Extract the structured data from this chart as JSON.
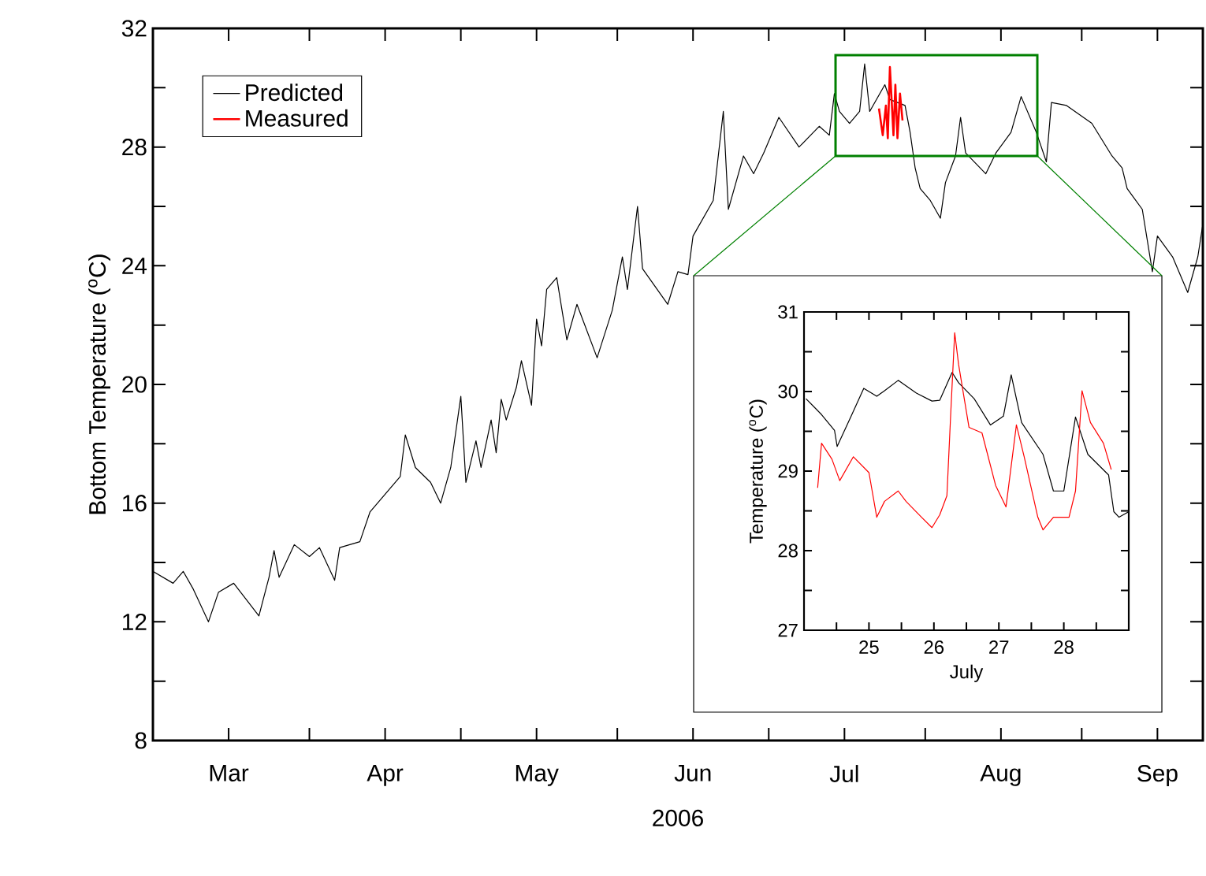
{
  "chart_data": [
    {
      "type": "line",
      "xlabel": "2006",
      "ylabel": "Bottom Temperature ($^{o}$C)",
      "xlim": [
        "2006-03-01",
        "2006-09-25"
      ],
      "xticks": [
        {
          "value": "2006-03-01",
          "label": null
        },
        {
          "value": "2006-03-16",
          "label": "Mar"
        },
        {
          "value": "2006-04-01",
          "label": null
        },
        {
          "value": "2006-04-16",
          "label": "Apr"
        },
        {
          "value": "2006-05-01",
          "label": null
        },
        {
          "value": "2006-05-16",
          "label": "May"
        },
        {
          "value": "2006-06-01",
          "label": null
        },
        {
          "value": "2006-06-16",
          "label": "Jun"
        },
        {
          "value": "2006-07-01",
          "label": null
        },
        {
          "value": "2006-07-16",
          "label": "Jul"
        },
        {
          "value": "2006-08-01",
          "label": null
        },
        {
          "value": "2006-08-16",
          "label": "Aug"
        },
        {
          "value": "2006-09-01",
          "label": null
        },
        {
          "value": "2006-09-16",
          "label": "Sep"
        }
      ],
      "ylim": [
        8,
        32
      ],
      "yticks": [
        8,
        {
          "value": 10,
          "label": null
        },
        12,
        {
          "value": 14,
          "label": null
        },
        16,
        {
          "value": 18,
          "label": null
        },
        20,
        {
          "value": 22,
          "label": null
        },
        24,
        {
          "value": 26,
          "label": null
        },
        28,
        {
          "value": 30,
          "label": null
        },
        32
      ],
      "legend": "top left",
      "grid": false,
      "marker": "none",
      "series": [
        {
          "name": "Predicted",
          "color": "#000000",
          "x": [
            "2006-03-01",
            "2006-03-05",
            "2006-03-07",
            "2006-03-09",
            "2006-03-12",
            "2006-03-14",
            "2006-03-17",
            "2006-03-22",
            "2006-03-24",
            "2006-03-25",
            "2006-03-26",
            "2006-03-29",
            "2006-04-01",
            "2006-04-03",
            "2006-04-06",
            "2006-04-07",
            "2006-04-11",
            "2006-04-13",
            "2006-04-16",
            "2006-04-19",
            "2006-04-20",
            "2006-04-22",
            "2006-04-25",
            "2006-04-27",
            "2006-04-29",
            "2006-05-01",
            "2006-05-02",
            "2006-05-04",
            "2006-05-05",
            "2006-05-07",
            "2006-05-08",
            "2006-05-09",
            "2006-05-10",
            "2006-05-12",
            "2006-05-13",
            "2006-05-15",
            "2006-05-16",
            "2006-05-17",
            "2006-05-18",
            "2006-05-20",
            "2006-05-22",
            "2006-05-24",
            "2006-05-28",
            "2006-05-31",
            "2006-06-02",
            "2006-06-03",
            "2006-06-05",
            "2006-06-06",
            "2006-06-11",
            "2006-06-13",
            "2006-06-15",
            "2006-06-16",
            "2006-06-20",
            "2006-06-22",
            "2006-06-23",
            "2006-06-26",
            "2006-06-28",
            "2006-06-30",
            "2006-07-03",
            "2006-07-07",
            "2006-07-11",
            "2006-07-13",
            "2006-07-14",
            "2006-07-15",
            "2006-07-17",
            "2006-07-19",
            "2006-07-20",
            "2006-07-21",
            "2006-07-24",
            "2006-07-25",
            "2006-07-28",
            "2006-07-29",
            "2006-07-30",
            "2006-07-31",
            "2006-08-02",
            "2006-08-04",
            "2006-08-05",
            "2006-08-07",
            "2006-08-08",
            "2006-08-09",
            "2006-08-13",
            "2006-08-15",
            "2006-08-18",
            "2006-08-20",
            "2006-08-23",
            "2006-08-25",
            "2006-08-26",
            "2006-08-29",
            "2006-09-03",
            "2006-09-07",
            "2006-09-09",
            "2006-09-10",
            "2006-09-13",
            "2006-09-15",
            "2006-09-16",
            "2006-09-19",
            "2006-09-22",
            "2006-09-24",
            "2006-09-25"
          ],
          "values": [
            13.7,
            13.3,
            13.7,
            13.1,
            12.0,
            13.0,
            13.3,
            12.2,
            13.5,
            14.4,
            13.5,
            14.6,
            14.2,
            14.5,
            13.4,
            14.5,
            14.7,
            15.7,
            16.3,
            16.9,
            18.3,
            17.2,
            16.7,
            16.0,
            17.2,
            19.6,
            16.7,
            18.1,
            17.2,
            18.8,
            17.7,
            19.5,
            18.8,
            19.9,
            20.8,
            19.3,
            22.2,
            21.3,
            23.2,
            23.6,
            21.5,
            22.7,
            20.9,
            22.5,
            24.3,
            23.2,
            26.0,
            23.9,
            22.7,
            23.8,
            23.7,
            25.0,
            26.2,
            29.2,
            25.9,
            27.7,
            27.1,
            27.8,
            29.0,
            28.0,
            28.7,
            28.4,
            29.8,
            29.2,
            28.8,
            29.2,
            30.8,
            29.2,
            30.1,
            29.6,
            29.4,
            28.5,
            27.3,
            26.6,
            26.2,
            25.6,
            26.8,
            27.7,
            29.0,
            27.8,
            27.1,
            27.8,
            28.5,
            29.7,
            28.5,
            27.5,
            29.5,
            29.4,
            28.8,
            27.7,
            27.3,
            26.6,
            25.9,
            23.8,
            25.0,
            24.3,
            23.1,
            24.3,
            25.4
          ]
        },
        {
          "name": "Measured",
          "color": "#ff0000",
          "x": [
            "2006-07-22T20:00",
            "2006-07-23T14:00",
            "2006-07-24T05:00",
            "2006-07-24T14:00",
            "2006-07-25T00:00",
            "2006-07-25T17:00",
            "2006-07-26T02:00",
            "2006-07-26T12:00",
            "2006-07-27T00:00",
            "2006-07-27T12:00"
          ],
          "values": [
            29.3,
            28.4,
            29.4,
            28.3,
            30.7,
            28.4,
            30.1,
            28.3,
            29.8,
            28.9
          ]
        }
      ]
    },
    {
      "type": "line",
      "xlabel": "July",
      "ylabel": "Temperature ($^{o}$C)",
      "xlim": [
        24,
        29
      ],
      "xticks": [
        {
          "value": 24.5,
          "label": null
        },
        25,
        {
          "value": 25.5,
          "label": null
        },
        26,
        {
          "value": 26.5,
          "label": null
        },
        27,
        {
          "value": 27.5,
          "label": null
        },
        28,
        {
          "value": 28.5,
          "label": null
        }
      ],
      "ylim": [
        27,
        31
      ],
      "yticks": [
        27,
        {
          "value": 27.5,
          "label": null
        },
        28,
        {
          "value": 28.5,
          "label": null
        },
        29,
        {
          "value": 29.5,
          "label": null
        },
        30,
        {
          "value": 30.5,
          "label": null
        },
        31
      ],
      "grid": false,
      "marker": "none",
      "series": [
        {
          "color": "#000000",
          "x": [
            24.03,
            24.27,
            24.47,
            24.51,
            24.72,
            24.92,
            25.12,
            25.24,
            25.45,
            25.73,
            25.97,
            26.09,
            26.28,
            26.38,
            26.62,
            26.87,
            27.07,
            27.19,
            27.35,
            27.68,
            27.84,
            28.0,
            28.18,
            28.37,
            28.69,
            28.77,
            28.85,
            29.0
          ],
          "values": [
            29.91,
            29.71,
            29.51,
            29.31,
            29.68,
            30.04,
            29.94,
            30.01,
            30.14,
            29.98,
            29.88,
            29.89,
            30.24,
            30.11,
            29.91,
            29.58,
            29.69,
            30.21,
            29.61,
            29.21,
            28.75,
            28.75,
            29.68,
            29.21,
            28.95,
            28.49,
            28.42,
            28.49
          ]
        },
        {
          "color": "#ff0000",
          "x": [
            24.21,
            24.27,
            24.43,
            24.55,
            24.76,
            25.0,
            25.12,
            25.24,
            25.45,
            25.57,
            25.81,
            25.97,
            26.09,
            26.2,
            26.26,
            26.32,
            26.38,
            26.54,
            26.74,
            26.95,
            27.11,
            27.27,
            27.39,
            27.6,
            27.68,
            27.84,
            28.08,
            28.18,
            28.28,
            28.41,
            28.61,
            28.73
          ],
          "values": [
            28.79,
            29.35,
            29.15,
            28.88,
            29.18,
            28.98,
            28.42,
            28.62,
            28.75,
            28.62,
            28.42,
            28.29,
            28.45,
            28.69,
            29.74,
            30.74,
            30.34,
            29.55,
            29.48,
            28.82,
            28.55,
            29.58,
            29.18,
            28.42,
            28.26,
            28.42,
            28.42,
            28.75,
            30.01,
            29.61,
            29.35,
            29.02
          ]
        }
      ]
    }
  ]
}
